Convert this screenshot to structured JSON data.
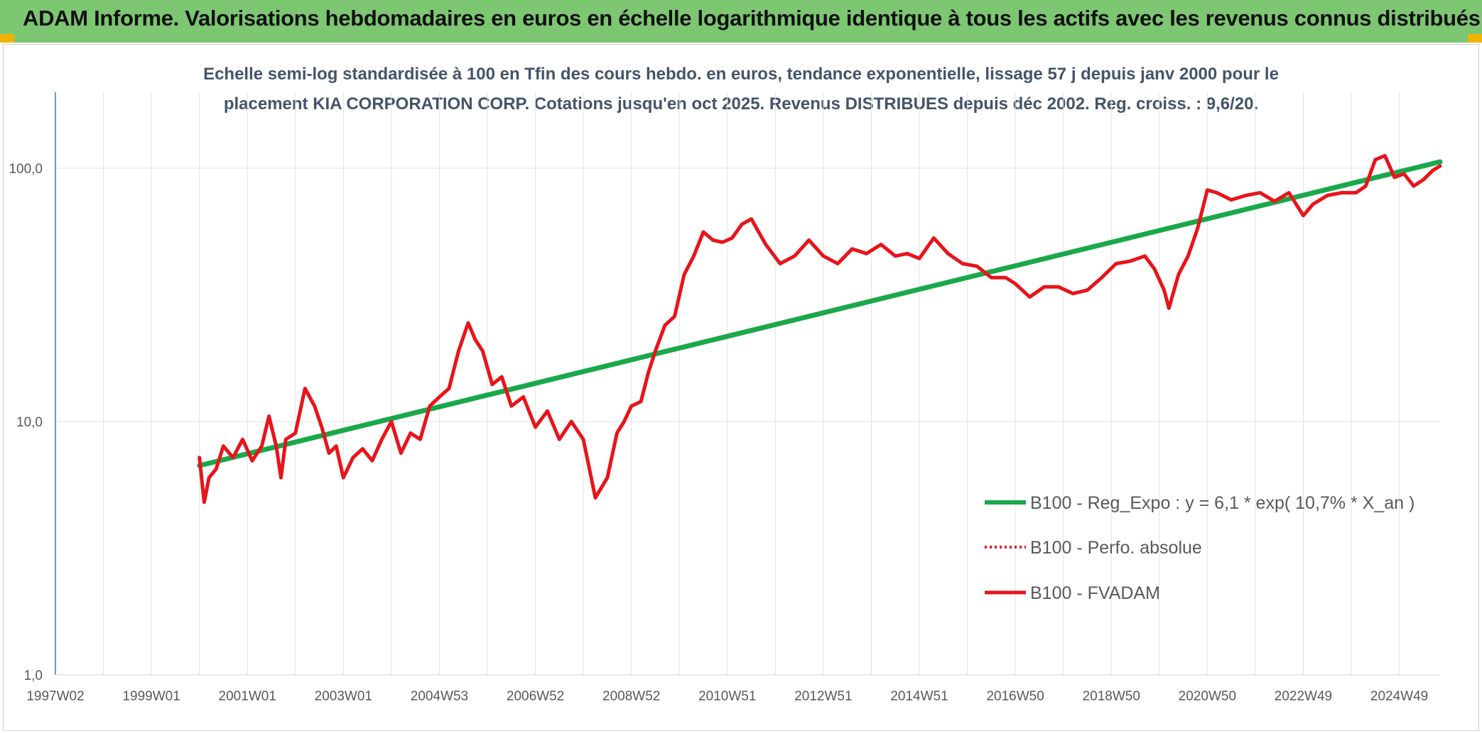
{
  "header": {
    "title": "ADAM Informe. Valorisations hebdomadaires en euros en échelle logarithmique identique à tous les actifs avec les revenus connus distribués"
  },
  "chart_data": {
    "type": "line",
    "title_line1": "Echelle semi-log standardisée à 100 en Tfin des cours hebdo. en euros, tendance exponentielle, lissage 57 j depuis janv 2000 pour le",
    "title_line2": "placement KIA CORPORATION CORP. Cotations jusqu'en oct 2025. Revenus DISTRIBUES depuis déc 2002. Reg. croiss. : 9,6/20.",
    "y_scale": "log",
    "ylim": [
      1,
      200
    ],
    "xlim": [
      1997.0,
      2025.85
    ],
    "grid": true,
    "legend_position": "right",
    "y_ticks": [
      {
        "value": 100,
        "label": "100,0"
      },
      {
        "value": 10,
        "label": "10,0"
      },
      {
        "value": 1,
        "label": "1,0"
      }
    ],
    "x_ticks": [
      {
        "value": 1997.0,
        "label": "1997W02"
      },
      {
        "value": 1999.0,
        "label": "1999W01"
      },
      {
        "value": 2001.0,
        "label": "2001W01"
      },
      {
        "value": 2003.0,
        "label": "2003W01"
      },
      {
        "value": 2005.0,
        "label": "2004W53"
      },
      {
        "value": 2007.0,
        "label": "2006W52"
      },
      {
        "value": 2009.0,
        "label": "2008W52"
      },
      {
        "value": 2011.0,
        "label": "2010W51"
      },
      {
        "value": 2013.0,
        "label": "2012W51"
      },
      {
        "value": 2015.0,
        "label": "2014W51"
      },
      {
        "value": 2017.0,
        "label": "2016W50"
      },
      {
        "value": 2019.0,
        "label": "2018W50"
      },
      {
        "value": 2021.0,
        "label": "2020W50"
      },
      {
        "value": 2023.0,
        "label": "2022W49"
      },
      {
        "value": 2025.0,
        "label": "2024W49"
      }
    ],
    "series": [
      {
        "name": "B100 - Reg_Expo : y = 6,1 * exp( 10,7% *  X_an )",
        "color": "#1aa84a",
        "style": "solid",
        "x": [
          2000.0,
          2025.85
        ],
        "y": [
          6.7,
          106
        ]
      },
      {
        "name": "B100 - Perfo. absolue",
        "color": "#e8141b",
        "style": "dotted",
        "x": [],
        "y": []
      },
      {
        "name": "B100 - FVADAM",
        "color": "#e8141b",
        "style": "solid",
        "x": [
          2000.0,
          2000.1,
          2000.2,
          2000.35,
          2000.5,
          2000.7,
          2000.9,
          2001.1,
          2001.3,
          2001.45,
          2001.6,
          2001.7,
          2001.8,
          2002.0,
          2002.1,
          2002.2,
          2002.4,
          2002.55,
          2002.7,
          2002.85,
          2003.0,
          2003.2,
          2003.4,
          2003.6,
          2003.8,
          2004.0,
          2004.2,
          2004.4,
          2004.6,
          2004.8,
          2005.0,
          2005.2,
          2005.4,
          2005.6,
          2005.75,
          2005.9,
          2006.1,
          2006.3,
          2006.5,
          2006.75,
          2007.0,
          2007.25,
          2007.5,
          2007.75,
          2008.0,
          2008.25,
          2008.5,
          2008.7,
          2008.85,
          2009.0,
          2009.2,
          2009.35,
          2009.5,
          2009.7,
          2009.9,
          2010.1,
          2010.3,
          2010.5,
          2010.7,
          2010.9,
          2011.1,
          2011.3,
          2011.5,
          2011.8,
          2012.1,
          2012.4,
          2012.7,
          2013.0,
          2013.3,
          2013.6,
          2013.9,
          2014.2,
          2014.5,
          2014.75,
          2015.0,
          2015.3,
          2015.6,
          2015.9,
          2016.2,
          2016.5,
          2016.8,
          2017.0,
          2017.3,
          2017.6,
          2017.9,
          2018.2,
          2018.5,
          2018.8,
          2019.1,
          2019.4,
          2019.7,
          2019.9,
          2020.1,
          2020.2,
          2020.4,
          2020.6,
          2020.8,
          2021.0,
          2021.2,
          2021.5,
          2021.8,
          2022.1,
          2022.4,
          2022.7,
          2023.0,
          2023.2,
          2023.5,
          2023.8,
          2024.1,
          2024.3,
          2024.5,
          2024.7,
          2024.9,
          2025.1,
          2025.3,
          2025.5,
          2025.7,
          2025.85
        ],
        "y": [
          7.2,
          4.8,
          6.0,
          6.5,
          8.0,
          7.2,
          8.5,
          7.0,
          8.0,
          10.5,
          8.0,
          6.0,
          8.5,
          9.0,
          11.0,
          13.5,
          11.5,
          9.5,
          7.5,
          8.0,
          6.0,
          7.2,
          7.8,
          7.0,
          8.5,
          10.0,
          7.5,
          9.0,
          8.5,
          11.5,
          12.5,
          13.5,
          19.0,
          24.5,
          21.0,
          19.0,
          14.0,
          15.0,
          11.5,
          12.5,
          9.5,
          11.0,
          8.5,
          10.0,
          8.5,
          5.0,
          6.0,
          9.0,
          10.0,
          11.5,
          12.0,
          15.5,
          19.0,
          24.0,
          26.0,
          38.0,
          45.0,
          56.0,
          52.0,
          51.0,
          53.0,
          60.0,
          63.0,
          50.0,
          42.0,
          45.0,
          52.0,
          45.0,
          42.0,
          48.0,
          46.0,
          50.0,
          45.0,
          46.0,
          44.0,
          53.0,
          46.0,
          42.0,
          41.0,
          37.0,
          37.0,
          35.0,
          31.0,
          34.0,
          34.0,
          32.0,
          33.0,
          37.0,
          42.0,
          43.0,
          45.0,
          40.0,
          33.0,
          28.0,
          38.0,
          45.0,
          58.0,
          82.0,
          80.0,
          75.0,
          78.0,
          80.0,
          74.0,
          80.0,
          65.0,
          72.0,
          78.0,
          80.0,
          80.0,
          85.0,
          108.0,
          112.0,
          92.0,
          95.0,
          85.0,
          90.0,
          98.0,
          102.0
        ]
      }
    ]
  }
}
